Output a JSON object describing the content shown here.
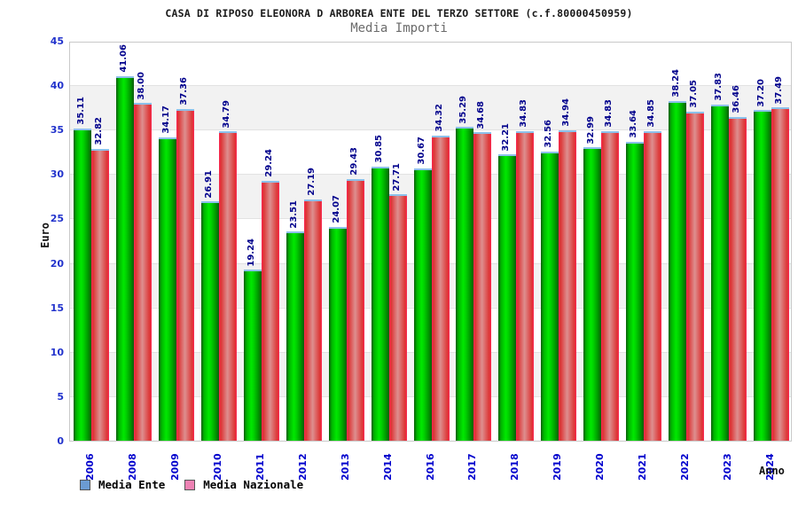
{
  "header": {
    "title": "CASA DI RIPOSO ELEONORA D ARBOREA ENTE DEL TERZO SETTORE (c.f.80000450959)",
    "subtitle": "Media Importi"
  },
  "chart_data": {
    "type": "bar",
    "title": "CASA DI RIPOSO ELEONORA D ARBOREA ENTE DEL TERZO SETTORE (c.f.80000450959)",
    "subtitle": "Media Importi",
    "xlabel": "Anno",
    "ylabel": "Euro",
    "ylim": [
      0,
      45
    ],
    "y_ticks": [
      0,
      5,
      10,
      15,
      20,
      25,
      30,
      35,
      40,
      45
    ],
    "grid": "horizontal gridlines every 5 with alternating white/gray bands",
    "legend_position": "bottom-left",
    "value_labels": "rotated 90deg above each bar, navy",
    "categories": [
      "2006",
      "2008",
      "2009",
      "2010",
      "2011",
      "2012",
      "2013",
      "2014",
      "2016",
      "2017",
      "2018",
      "2019",
      "2020",
      "2021",
      "2022",
      "2023",
      "2024"
    ],
    "series": [
      {
        "name": "Media Ente",
        "legend_color": "#6b9bd2",
        "values": [
          35.11,
          41.06,
          34.17,
          26.91,
          19.24,
          23.51,
          24.07,
          30.85,
          30.67,
          35.29,
          32.21,
          32.56,
          32.99,
          33.64,
          38.24,
          37.83,
          37.2
        ]
      },
      {
        "name": "Media Nazionale",
        "legend_color": "#ee82b4",
        "values": [
          32.82,
          38.0,
          37.36,
          34.79,
          29.24,
          27.19,
          29.43,
          27.71,
          34.32,
          34.68,
          34.83,
          34.94,
          34.83,
          34.85,
          37.05,
          36.46,
          37.49
        ]
      }
    ],
    "colors": {
      "bar_green_edge": "#0a5c0a",
      "bar_green_center": "#00e800",
      "bar_red_border": "#ff2656",
      "bar_red_edge": "#dd3333",
      "bar_red_center": "#dd8f8f",
      "bar_top_cap": "#8cc0ea",
      "value_label": "#00008c",
      "x_tick": "#0000cd",
      "y_tick": "#2233cc",
      "band_gray": "#f2f2f2"
    }
  }
}
